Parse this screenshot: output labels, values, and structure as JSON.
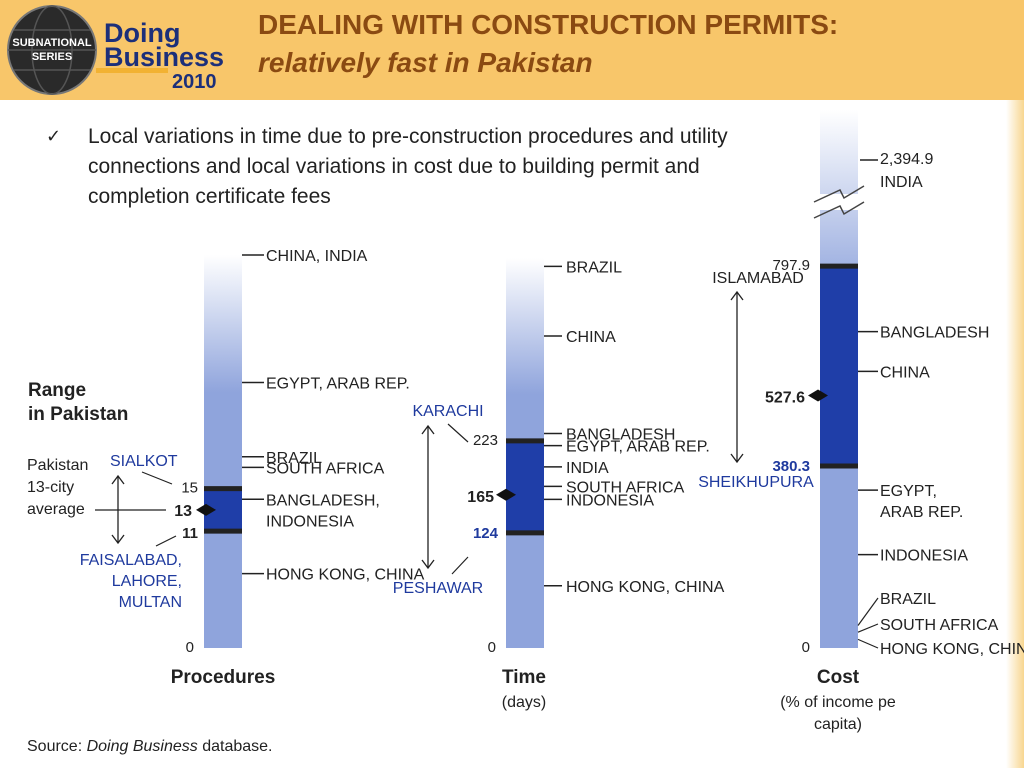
{
  "header": {
    "title_line1": "DEALING WITH CONSTRUCTION PERMITS:",
    "title_line2": "relatively fast in Pakistan",
    "logo_top": "SUBNATIONAL",
    "logo_bottom": "SERIES",
    "brand1": "Doing",
    "brand2": "Business",
    "year": "2010"
  },
  "bullet": {
    "icon": "check-icon",
    "text": "Local variations in time due to pre-construction procedures and utility connections and local variations in cost due to building permit and completion certificate fees"
  },
  "source": {
    "prefix": "Source: ",
    "italic": "Doing Business",
    "suffix": " database."
  },
  "colors": {
    "header_bg": "#f8c66a",
    "title": "#8a4a12",
    "bar_light": "#8fa4dc",
    "bar_dark": "#1f3ea8",
    "label_blue": "#1f3a9e"
  },
  "chart_data": {
    "type": "bar",
    "title": "Range in Pakistan",
    "panels": [
      {
        "name": "Procedures",
        "unit": "",
        "zero_label": "0",
        "pakistan_range": {
          "min": 11,
          "max": 15,
          "average": 13
        },
        "range_labels": {
          "max": "15",
          "avg": "13",
          "min": "11"
        },
        "max_cities": "SIALKOT",
        "min_cities": "FAISALABAD, LAHORE, MULTAN",
        "average_label": "Pakistan 13-city average",
        "comparators": [
          {
            "label": "CHINA, INDIA",
            "value": 37
          },
          {
            "label": "EGYPT, ARAB REP.",
            "value": 25
          },
          {
            "label": "BRAZIL",
            "value": 18
          },
          {
            "label": "SOUTH AFRICA",
            "value": 17
          },
          {
            "label": "BANGLADESH, INDONESIA",
            "value": 14
          },
          {
            "label": "HONG KONG, CHINA",
            "value": 7
          }
        ]
      },
      {
        "name": "Time",
        "unit": "(days)",
        "zero_label": "0",
        "pakistan_range": {
          "min": 124,
          "max": 223,
          "average": 165
        },
        "range_labels": {
          "max": "223",
          "avg": "165",
          "min": "124"
        },
        "max_cities": "KARACHI",
        "min_cities": "PESHAWAR",
        "comparators": [
          {
            "label": "BRAZIL",
            "value": 411
          },
          {
            "label": "CHINA",
            "value": 336
          },
          {
            "label": "BANGLADESH",
            "value": 231
          },
          {
            "label": "EGYPT, ARAB REP.",
            "value": 218
          },
          {
            "label": "INDIA",
            "value": 195
          },
          {
            "label": "SOUTH AFRICA",
            "value": 174
          },
          {
            "label": "INDONESIA",
            "value": 160
          },
          {
            "label": "HONG KONG, CHINA",
            "value": 67
          }
        ]
      },
      {
        "name": "Cost",
        "unit": "(% of income per capita)",
        "zero_label": "0",
        "pakistan_range": {
          "min": 380.3,
          "max": 797.9,
          "average": 527.6
        },
        "range_labels": {
          "max": "797.9",
          "avg": "527.6",
          "min": "380.3"
        },
        "max_cities": "ISLAMABAD",
        "min_cities": "SHEIKHUPURA",
        "comparators": [
          {
            "label": "INDIA",
            "value": 2394.9,
            "value_label": "2,394.9",
            "axis_break": true
          },
          {
            "label": "BANGLADESH",
            "value": 661
          },
          {
            "label": "CHINA",
            "value": 578
          },
          {
            "label": "EGYPT, ARAB REP.",
            "value": 330
          },
          {
            "label": "INDONESIA",
            "value": 195
          },
          {
            "label": "BRAZIL",
            "value": 47
          },
          {
            "label": "SOUTH AFRICA",
            "value": 33
          },
          {
            "label": "HONG KONG, CHINA",
            "value": 18
          }
        ]
      }
    ]
  }
}
